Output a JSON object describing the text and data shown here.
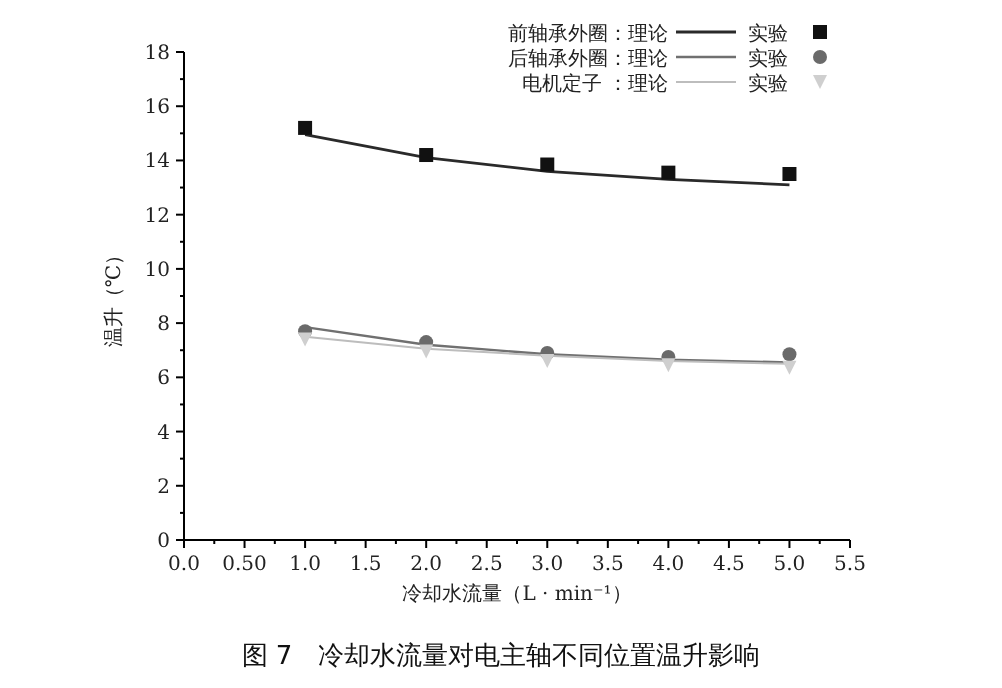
{
  "chart_data": {
    "type": "line",
    "title": "图 7　冷却水流量对电主轴不同位置温升影响",
    "xlabel": "冷却水流量（L · min⁻¹）",
    "ylabel": "温升（℃）",
    "x": [
      1.0,
      2.0,
      3.0,
      4.0,
      5.0
    ],
    "series": [
      {
        "name": "前轴承外圈：理论",
        "color": "#2a2a2a",
        "marker": "none",
        "values": [
          14.95,
          14.1,
          13.6,
          13.3,
          13.1
        ]
      },
      {
        "name": "实验",
        "type": "scatter",
        "color": "#111111",
        "marker": "square",
        "values": [
          15.2,
          14.2,
          13.85,
          13.55,
          13.5
        ]
      },
      {
        "name": "后轴承外圈：理论",
        "color": "#707070",
        "marker": "none",
        "values": [
          7.85,
          7.2,
          6.85,
          6.65,
          6.55
        ]
      },
      {
        "name": "实验",
        "type": "scatter",
        "color": "#6a6a6a",
        "marker": "circle",
        "values": [
          7.7,
          7.3,
          6.9,
          6.75,
          6.85
        ]
      },
      {
        "name": "电机定子 ：理论",
        "color": "#bdbdbd",
        "marker": "none",
        "values": [
          7.5,
          7.05,
          6.8,
          6.6,
          6.5
        ]
      },
      {
        "name": "实验",
        "type": "scatter",
        "color": "#cfcfcf",
        "marker": "triangle",
        "values": [
          7.4,
          6.95,
          6.6,
          6.45,
          6.35
        ]
      }
    ],
    "xlim": [
      0,
      5.5
    ],
    "xticks": [
      {
        "value": 0,
        "label": "0.0"
      },
      {
        "value": 0.25,
        "label": null
      },
      {
        "value": 0.5,
        "label": "0.50"
      },
      {
        "value": 0.75,
        "label": null
      },
      {
        "value": 1,
        "label": "1.0"
      },
      {
        "value": 1.25,
        "label": null
      },
      {
        "value": 1.5,
        "label": "1.5"
      },
      {
        "value": 1.75,
        "label": null
      },
      {
        "value": 2,
        "label": "2.0"
      },
      {
        "value": 2.25,
        "label": null
      },
      {
        "value": 2.5,
        "label": "2.5"
      },
      {
        "value": 2.75,
        "label": null
      },
      {
        "value": 3,
        "label": "3.0"
      },
      {
        "value": 3.25,
        "label": null
      },
      {
        "value": 3.5,
        "label": "3.5"
      },
      {
        "value": 3.75,
        "label": null
      },
      {
        "value": 4,
        "label": "4.0"
      },
      {
        "value": 4.25,
        "label": null
      },
      {
        "value": 4.5,
        "label": "4.5"
      },
      {
        "value": 4.75,
        "label": null
      },
      {
        "value": 5,
        "label": "5.0"
      },
      {
        "value": 5.25,
        "label": null
      },
      {
        "value": 5.5,
        "label": "5.5"
      }
    ],
    "ylim": [
      0,
      18
    ],
    "yticks": [
      0,
      {
        "value": 1,
        "label": null
      },
      2,
      {
        "value": 3,
        "label": null
      },
      4,
      {
        "value": 5,
        "label": null
      },
      6,
      {
        "value": 7,
        "label": null
      },
      8,
      {
        "value": 9,
        "label": null
      },
      10,
      {
        "value": 11,
        "label": null
      },
      12,
      {
        "value": 13,
        "label": null
      },
      14,
      {
        "value": 15,
        "label": null
      },
      16,
      {
        "value": 17,
        "label": null
      },
      18
    ],
    "grid": false,
    "legend": "top right"
  }
}
